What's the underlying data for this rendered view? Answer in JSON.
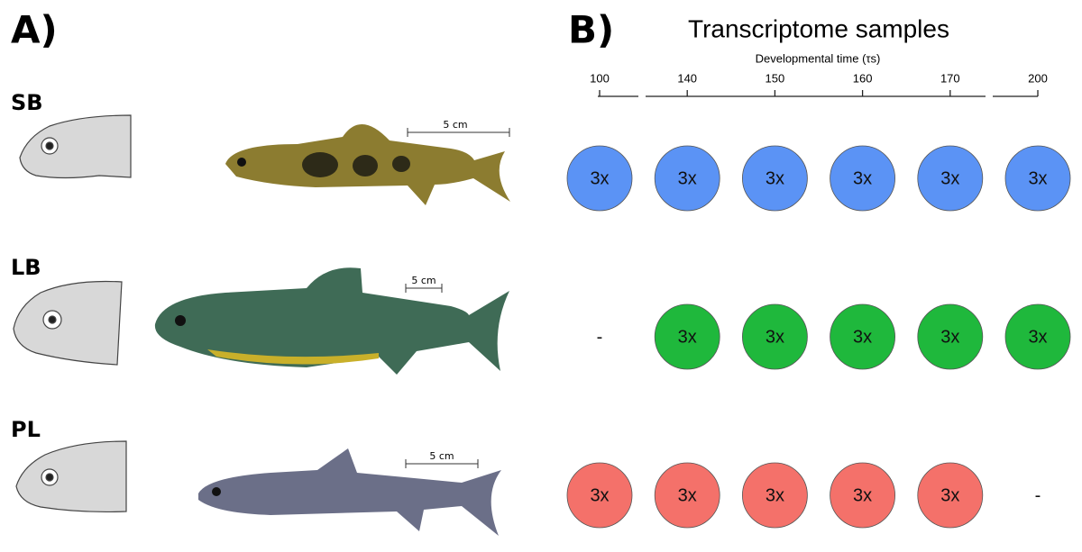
{
  "panel_a": {
    "label": "A)",
    "morphs": [
      {
        "name": "SB",
        "scale_label": "5 cm"
      },
      {
        "name": "LB",
        "scale_label": "5 cm"
      },
      {
        "name": "PL",
        "scale_label": "5 cm"
      }
    ]
  },
  "panel_b": {
    "label": "B)",
    "title": "Transcriptome samples",
    "axis_label": "Developmental time (τs)",
    "time_points": [
      100,
      140,
      150,
      160,
      170,
      200
    ],
    "rows": [
      {
        "color": "#5b93f5",
        "cells": [
          "3x",
          "3x",
          "3x",
          "3x",
          "3x",
          "3x"
        ]
      },
      {
        "color": "#1fb83c",
        "cells": [
          "-",
          "3x",
          "3x",
          "3x",
          "3x",
          "3x"
        ]
      },
      {
        "color": "#f4716a",
        "cells": [
          "3x",
          "3x",
          "3x",
          "3x",
          "3x",
          "-"
        ]
      }
    ]
  }
}
